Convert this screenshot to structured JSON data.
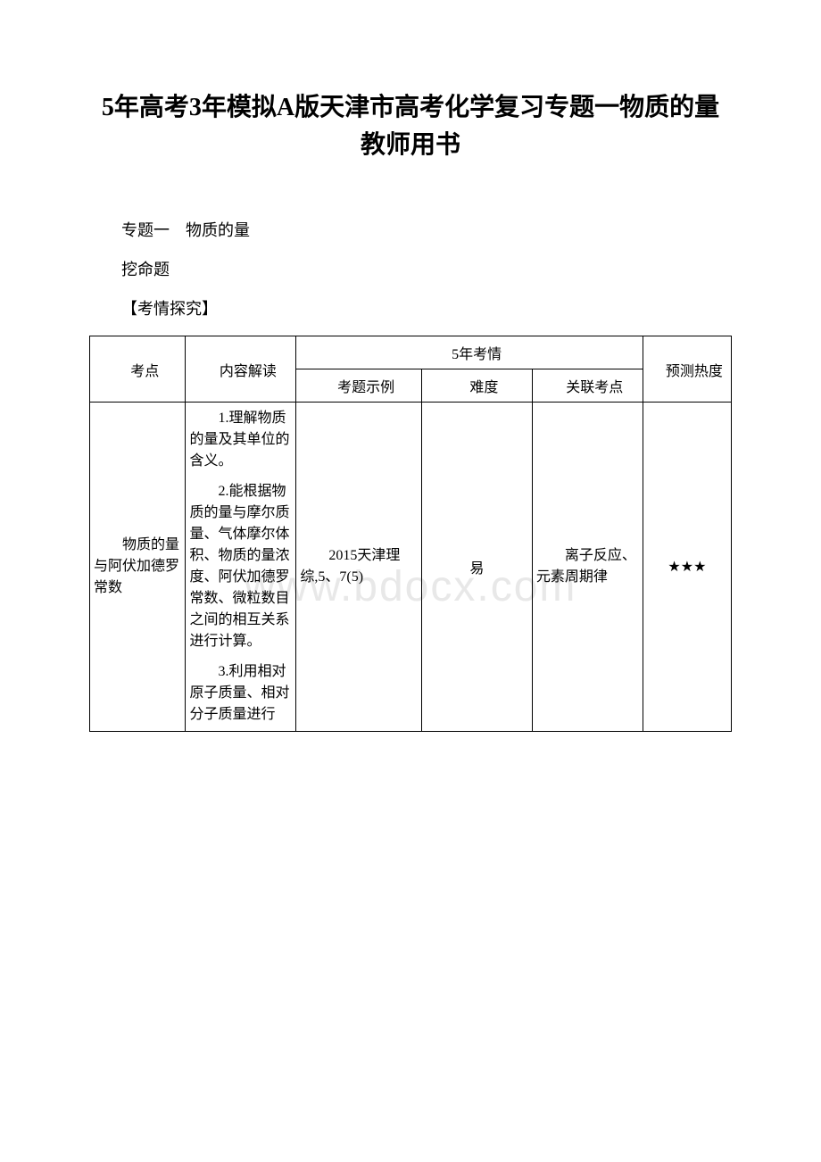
{
  "title": "5年高考3年模拟A版天津市高考化学复习专题一物质的量教师用书",
  "section_heading": "专题一　物质的量",
  "sub_heading": "挖命题",
  "bracket_heading": "【考情探究】",
  "watermark": "www.bdocx.com",
  "table": {
    "header": {
      "col1": "考点",
      "col2": "内容解读",
      "col3_group": "5年考情",
      "col3": "考题示例",
      "col4": "难度",
      "col5": "关联考点",
      "col6": "预测热度"
    },
    "row1": {
      "topic": "物质的量与阿伏加德罗常数",
      "content_p1": "1.理解物质的量及其单位的含义。",
      "content_p2": "2.能根据物质的量与摩尔质量、气体摩尔体积、物质的量浓度、阿伏加德罗常数、微粒数目之间的相互关系进行计算。",
      "content_p3": "3.利用相对原子质量、相对分子质量进行",
      "example": "2015天津理综,5、7(5)",
      "difficulty": "易",
      "related": "离子反应、元素周期律",
      "heat": "★★★"
    }
  },
  "colors": {
    "text": "#000000",
    "background": "#ffffff",
    "border": "#000000",
    "watermark": "#e8e8e8"
  },
  "fonts": {
    "title_size": 28,
    "body_size": 18,
    "table_size": 16
  }
}
